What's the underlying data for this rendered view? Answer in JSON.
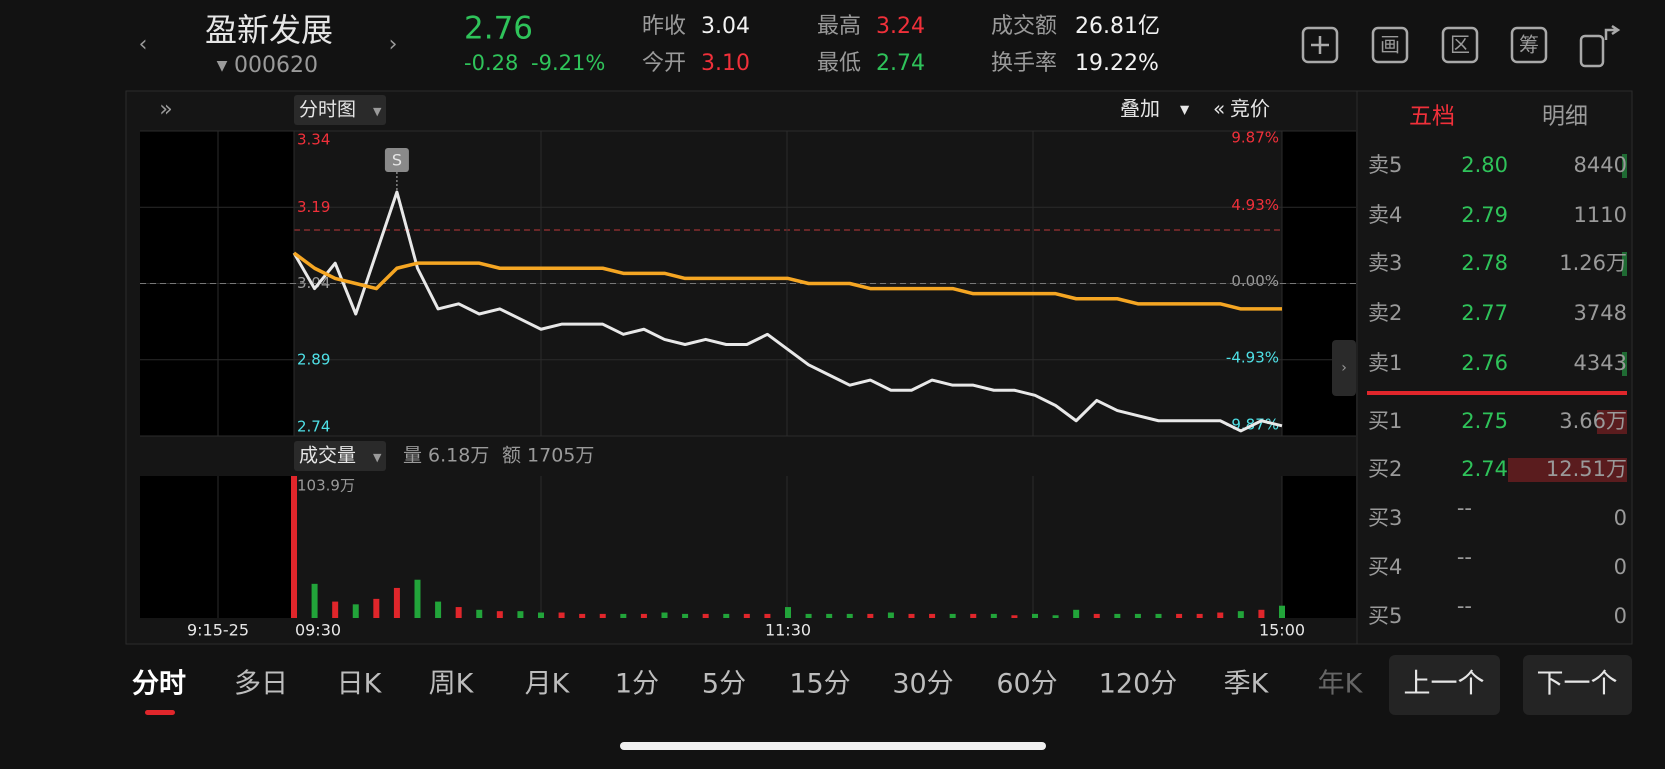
{
  "header": {
    "name": "盈新发展",
    "code": "000620",
    "price": "2.76",
    "change": "-0.28",
    "change_pct": "-9.21%",
    "stats": [
      {
        "label": "昨收",
        "value": "3.04"
      },
      {
        "label": "今开",
        "value": "3.10"
      },
      {
        "label": "最高",
        "value": "3.24"
      },
      {
        "label": "最低",
        "value": "2.74"
      },
      {
        "label": "成交额",
        "value": "26.81亿"
      },
      {
        "label": "换手率",
        "value": "19.22%"
      }
    ],
    "icons": [
      "画",
      "区",
      "筹"
    ]
  },
  "toolbar": {
    "mode": "分时图",
    "overlay": "叠加",
    "auction": "竞价"
  },
  "chart_data": {
    "type": "line",
    "reference": 3.04,
    "annotation": "S",
    "premarket_label": "9:15-25",
    "categories": [
      "09:30",
      null,
      null,
      null,
      null,
      null,
      null,
      null,
      null,
      null,
      null,
      null,
      null,
      null,
      null,
      null,
      null,
      null,
      null,
      null,
      null,
      null,
      null,
      null,
      "11:30",
      null,
      null,
      null,
      null,
      null,
      null,
      null,
      null,
      null,
      null,
      null,
      null,
      null,
      null,
      null,
      null,
      null,
      null,
      null,
      null,
      null,
      null,
      null,
      "15:00"
    ],
    "series": [
      {
        "color": "#e8e8e8",
        "values": [
          3.1,
          3.03,
          3.08,
          2.98,
          3.1,
          3.22,
          3.07,
          2.99,
          3.0,
          2.98,
          2.99,
          2.97,
          2.95,
          2.96,
          2.96,
          2.96,
          2.94,
          2.95,
          2.93,
          2.92,
          2.93,
          2.92,
          2.92,
          2.94,
          2.91,
          2.88,
          2.86,
          2.84,
          2.85,
          2.83,
          2.83,
          2.85,
          2.84,
          2.84,
          2.83,
          2.83,
          2.82,
          2.8,
          2.77,
          2.81,
          2.79,
          2.78,
          2.77,
          2.77,
          2.77,
          2.77,
          2.75,
          2.77,
          2.76
        ]
      },
      {
        "color": "#f5a623",
        "values": [
          3.1,
          3.07,
          3.05,
          3.04,
          3.03,
          3.07,
          3.08,
          3.08,
          3.08,
          3.08,
          3.07,
          3.07,
          3.07,
          3.07,
          3.07,
          3.07,
          3.06,
          3.06,
          3.06,
          3.05,
          3.05,
          3.05,
          3.05,
          3.05,
          3.05,
          3.04,
          3.04,
          3.04,
          3.03,
          3.03,
          3.03,
          3.03,
          3.03,
          3.02,
          3.02,
          3.02,
          3.02,
          3.02,
          3.01,
          3.01,
          3.01,
          3.0,
          3.0,
          3.0,
          3.0,
          3.0,
          2.99,
          2.99,
          2.99
        ]
      }
    ],
    "ylim": [
      2.74,
      3.34
    ],
    "yticks": [
      3.34,
      3.19,
      3.04,
      2.89,
      2.74
    ],
    "pct_ticks": [
      {
        "value": 3.34,
        "label": "9.87%"
      },
      {
        "value": 3.19,
        "label": "4.93%"
      },
      {
        "value": 3.04,
        "label": "0.00%"
      },
      {
        "value": 2.89,
        "label": "-4.93%"
      },
      {
        "value": 2.74,
        "label": "-9.87%"
      }
    ],
    "grid": true,
    "volume": {
      "up_color": "#e0262b",
      "down_color": "#22a43a",
      "ylim": [
        0,
        103.9
      ],
      "yticks": [
        {
          "value": 103.9,
          "label": "103.9万"
        }
      ],
      "values": [
        103.9,
        25,
        12,
        10,
        14,
        22,
        28,
        12,
        8,
        6,
        5,
        5,
        4,
        4,
        3,
        3,
        3,
        3,
        4,
        3,
        3,
        3,
        3,
        3,
        8,
        3,
        3,
        3,
        3,
        4,
        3,
        3,
        3,
        3,
        3,
        2,
        3,
        2,
        6,
        3,
        3,
        3,
        3,
        3,
        3,
        4,
        5,
        6,
        9
      ]
    }
  },
  "volume_panel": {
    "title": "成交量",
    "volume": "量 6.18万",
    "amount": "额 1705万"
  },
  "order_book": {
    "tabs": [
      "五档",
      "明细"
    ],
    "rows": [
      [
        "卖5",
        "2.80",
        "8440"
      ],
      [
        "卖4",
        "2.79",
        "1110"
      ],
      [
        "卖3",
        "2.78",
        "1.26万"
      ],
      [
        "卖2",
        "2.77",
        "3748"
      ],
      [
        "卖1",
        "2.76",
        "4343"
      ],
      [
        "买1",
        "2.75",
        "3.66万"
      ],
      [
        "买2",
        "2.74",
        "12.51万"
      ],
      [
        "买3",
        "--",
        "0"
      ],
      [
        "买4",
        "--",
        "0"
      ],
      [
        "买5",
        "--",
        "0"
      ]
    ]
  },
  "tabs": [
    "分时",
    "多日",
    "日K",
    "周K",
    "月K",
    "1分",
    "5分",
    "15分",
    "30分",
    "60分",
    "120分",
    "季K",
    "年K"
  ],
  "buttons": [
    "上一个",
    "下一个"
  ]
}
